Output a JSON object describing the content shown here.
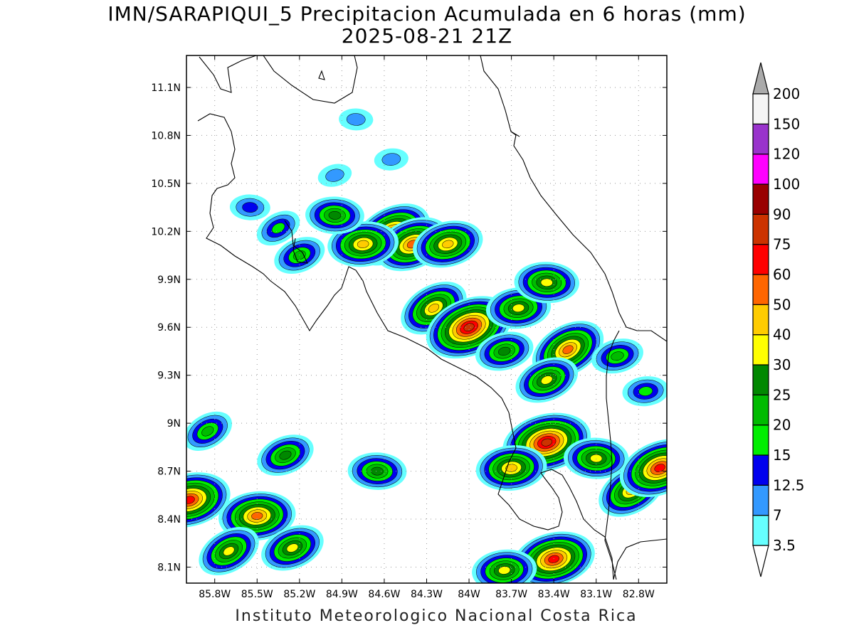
{
  "title": {
    "line1": "IMN/SARAPIQUI_5 Precipitacion Acumulada en 6 horas (mm)",
    "line2": "2025-08-21 21Z"
  },
  "credit": "Instituto Meteorologico Nacional Costa Rica",
  "map": {
    "lon_range": [
      -86.0,
      -82.6
    ],
    "lat_range": [
      8.0,
      11.3
    ],
    "lon_ticks": [
      {
        "value": -85.8,
        "label": "85.8W"
      },
      {
        "value": -85.5,
        "label": "85.5W"
      },
      {
        "value": -85.2,
        "label": "85.2W"
      },
      {
        "value": -84.9,
        "label": "84.9W"
      },
      {
        "value": -84.6,
        "label": "84.6W"
      },
      {
        "value": -84.3,
        "label": "84.3W"
      },
      {
        "value": -84.0,
        "label": "84W"
      },
      {
        "value": -83.7,
        "label": "83.7W"
      },
      {
        "value": -83.4,
        "label": "83.4W"
      },
      {
        "value": -83.1,
        "label": "83.1W"
      },
      {
        "value": -82.8,
        "label": "82.8W"
      }
    ],
    "lat_ticks": [
      {
        "value": 8.1,
        "label": "8.1N"
      },
      {
        "value": 8.4,
        "label": "8.4N"
      },
      {
        "value": 8.7,
        "label": "8.7N"
      },
      {
        "value": 9.0,
        "label": "9N"
      },
      {
        "value": 9.3,
        "label": "9.3N"
      },
      {
        "value": 9.6,
        "label": "9.6N"
      },
      {
        "value": 9.9,
        "label": "9.9N"
      },
      {
        "value": 10.2,
        "label": "10.2N"
      },
      {
        "value": 10.5,
        "label": "10.5N"
      },
      {
        "value": 10.8,
        "label": "10.8N"
      },
      {
        "value": 11.1,
        "label": "11.1N"
      }
    ],
    "grid": "dotted"
  },
  "colorbar": {
    "units": "mm",
    "levels": [
      "3.5",
      "7",
      "12.5",
      "15",
      "20",
      "25",
      "30",
      "40",
      "50",
      "60",
      "75",
      "90",
      "100",
      "120",
      "150",
      "200"
    ],
    "colors": [
      "#66ffff",
      "#3399ff",
      "#0000ee",
      "#00ee00",
      "#00bb00",
      "#008800",
      "#ffff00",
      "#ffcc00",
      "#ff6600",
      "#ff0000",
      "#cc3300",
      "#990000",
      "#ff00ff",
      "#9933cc",
      "#f5f5f5",
      "#aaaaaa"
    ],
    "under_color": "#ffffff",
    "over_color": "#aaaaaa"
  },
  "precip_cells": [
    {
      "lon": -84.55,
      "lat": 10.18,
      "peak": 60
    },
    {
      "lon": -84.4,
      "lat": 10.12,
      "peak": 50
    },
    {
      "lon": -84.15,
      "lat": 10.12,
      "peak": 40
    },
    {
      "lon": -84.75,
      "lat": 10.12,
      "peak": 40
    },
    {
      "lon": -84.95,
      "lat": 10.3,
      "peak": 25
    },
    {
      "lon": -84.25,
      "lat": 9.72,
      "peak": 40
    },
    {
      "lon": -84.0,
      "lat": 9.6,
      "peak": 75
    },
    {
      "lon": -83.75,
      "lat": 9.45,
      "peak": 25
    },
    {
      "lon": -83.65,
      "lat": 9.72,
      "peak": 30
    },
    {
      "lon": -83.45,
      "lat": 9.88,
      "peak": 30
    },
    {
      "lon": -83.3,
      "lat": 9.46,
      "peak": 50
    },
    {
      "lon": -83.45,
      "lat": 9.27,
      "peak": 30
    },
    {
      "lon": -83.45,
      "lat": 8.88,
      "peak": 75
    },
    {
      "lon": -83.7,
      "lat": 8.72,
      "peak": 40
    },
    {
      "lon": -83.1,
      "lat": 8.78,
      "peak": 30
    },
    {
      "lon": -82.85,
      "lat": 8.58,
      "peak": 40
    },
    {
      "lon": -82.65,
      "lat": 8.72,
      "peak": 60
    },
    {
      "lon": -85.98,
      "lat": 8.52,
      "peak": 60
    },
    {
      "lon": -85.5,
      "lat": 8.42,
      "peak": 50
    },
    {
      "lon": -84.65,
      "lat": 8.7,
      "peak": 25
    },
    {
      "lon": -85.7,
      "lat": 8.2,
      "peak": 30
    },
    {
      "lon": -85.25,
      "lat": 8.22,
      "peak": 30
    },
    {
      "lon": -83.4,
      "lat": 8.15,
      "peak": 60
    },
    {
      "lon": -83.75,
      "lat": 8.08,
      "peak": 30
    },
    {
      "lon": -85.55,
      "lat": 10.35,
      "peak": 12.5
    },
    {
      "lon": -85.35,
      "lat": 10.22,
      "peak": 15
    },
    {
      "lon": -85.2,
      "lat": 10.05,
      "peak": 20
    },
    {
      "lon": -84.95,
      "lat": 10.55,
      "peak": 7
    },
    {
      "lon": -84.55,
      "lat": 10.65,
      "peak": 7
    },
    {
      "lon": -84.8,
      "lat": 10.9,
      "peak": 7
    },
    {
      "lon": -85.85,
      "lat": 8.95,
      "peak": 20
    },
    {
      "lon": -85.3,
      "lat": 8.8,
      "peak": 25
    },
    {
      "lon": -82.95,
      "lat": 9.42,
      "peak": 20
    },
    {
      "lon": -82.75,
      "lat": 9.2,
      "peak": 15
    }
  ]
}
